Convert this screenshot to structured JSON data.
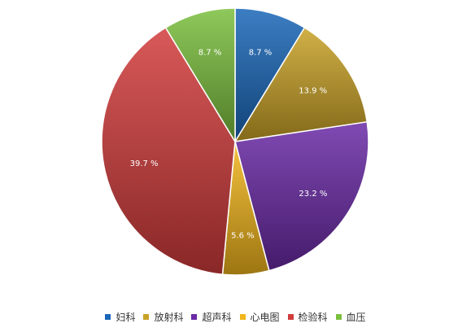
{
  "chart_data": {
    "type": "pie",
    "title": "",
    "slices": [
      {
        "label": "妇科",
        "value": 8.7,
        "display": "8.7 %",
        "color": "#1a67b8"
      },
      {
        "label": "放射科",
        "value": 13.9,
        "display": "13.9 %",
        "color": "#c9a227"
      },
      {
        "label": "超声科",
        "value": 23.2,
        "display": "23.2 %",
        "color": "#6a2aa5"
      },
      {
        "label": "心电图",
        "value": 5.6,
        "display": "5.6 %",
        "color": "#f2b61c"
      },
      {
        "label": "检验科",
        "value": 39.7,
        "display": "39.7 %",
        "color": "#d23c3c"
      },
      {
        "label": "血压",
        "value": 8.7,
        "display": "8.7 %",
        "color": "#7bbf3e"
      }
    ],
    "start": "12 o'clock",
    "direction": "clockwise",
    "legend_position": "bottom"
  }
}
